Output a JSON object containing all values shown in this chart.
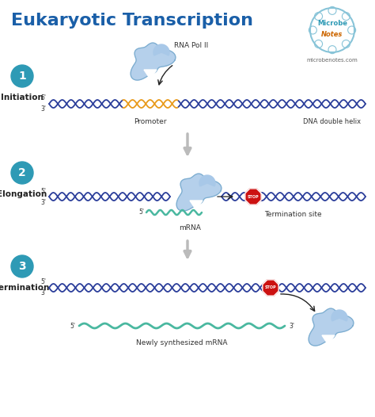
{
  "title": "Eukaryotic Transcription",
  "title_color": "#1a5fa8",
  "title_fontsize": 16,
  "bg_color": "#ffffff",
  "watermark_line1": "Microbe",
  "watermark_line2": "Notes",
  "watermark_url": "microbenotes.com",
  "steps": [
    {
      "num": "1",
      "label": "Initiation"
    },
    {
      "num": "2",
      "label": "Elongation"
    },
    {
      "num": "3",
      "label": "Termination"
    }
  ],
  "step_circle_color": "#2e9ab5",
  "step_circle_text_color": "#ffffff",
  "dna_blue": "#2a3d9a",
  "dna_orange": "#e89a1a",
  "mrna_color": "#4ab8a0",
  "rna_pol_color": "#a8c8e8",
  "stop_red": "#cc1111",
  "arrow_color": "#aaaaaa",
  "arrow_dark": "#222222",
  "promoter_label": "Promoter",
  "dna_label": "DNA double helix",
  "rna_pol_label": "RNA Pol II",
  "termination_label": "Termination site",
  "mrna_label": "mRNA",
  "new_mrna_label": "Newly synthesized mRNA"
}
